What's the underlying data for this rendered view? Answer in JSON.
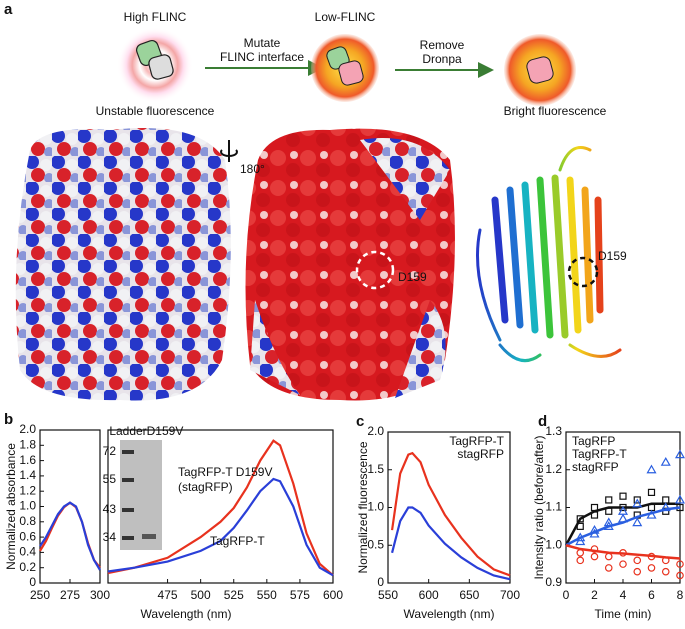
{
  "panel_a": {
    "label": "a",
    "high": "High FLINC",
    "step1": [
      "Mutate",
      "FLINC interface"
    ],
    "low": "Low-FLINC",
    "step2": [
      "Remove",
      "Dronpa"
    ],
    "unstable": "Unstable fluorescence",
    "bright": "Bright fluorescence",
    "rotation": "180°",
    "site_surface": "D159",
    "site_ribbon": "D159"
  },
  "chart_data": [
    {
      "type": "line",
      "panel_label": "b",
      "ylabel": "Normalized absorbance",
      "xlim": [
        250,
        300
      ],
      "xticks": [
        250,
        275,
        300
      ],
      "ylim": [
        0,
        2.0
      ],
      "yticks": [
        0,
        0.2,
        0.4,
        0.6,
        0.8,
        {
          "value": 1.0,
          "label": "1.0"
        },
        1.2,
        1.4,
        1.6,
        1.8,
        {
          "value": 2.0,
          "label": "2.0"
        }
      ],
      "series": [
        {
          "color": "#e8321e",
          "x": [
            250,
            255,
            260,
            265,
            270,
            275,
            280,
            285,
            290,
            295,
            300
          ],
          "values": [
            0.42,
            0.55,
            0.72,
            0.88,
            0.99,
            1.05,
            0.99,
            0.8,
            0.52,
            0.3,
            0.2
          ]
        },
        {
          "color": "#2a3fd8",
          "x": [
            250,
            255,
            260,
            265,
            270,
            275,
            280,
            285,
            290,
            295,
            300
          ],
          "values": [
            0.48,
            0.6,
            0.75,
            0.9,
            1.0,
            1.05,
            1.0,
            0.8,
            0.5,
            0.3,
            0.17
          ]
        }
      ]
    },
    {
      "type": "line",
      "xlabel": "Wavelength (nm)",
      "xlim": [
        430,
        600
      ],
      "xticks": [
        475,
        500,
        525,
        550,
        575,
        600
      ],
      "ylim": [
        0,
        2.0
      ],
      "series": [
        {
          "name": "TagRFP-T D159V",
          "color": "#e8321e",
          "x": [
            430,
            450,
            475,
            500,
            515,
            525,
            535,
            545,
            555,
            560,
            570,
            580,
            590,
            600
          ],
          "values": [
            0.13,
            0.2,
            0.33,
            0.6,
            0.8,
            0.98,
            1.25,
            1.6,
            1.86,
            1.8,
            1.3,
            0.65,
            0.25,
            0.1
          ]
        },
        {
          "name": "TagRFP-T",
          "color": "#2a3fd8",
          "x": [
            430,
            450,
            475,
            500,
            515,
            525,
            535,
            545,
            555,
            560,
            570,
            580,
            590,
            600
          ],
          "values": [
            0.15,
            0.2,
            0.28,
            0.42,
            0.55,
            0.72,
            0.95,
            1.2,
            1.36,
            1.33,
            1.0,
            0.5,
            0.2,
            0.1
          ]
        }
      ],
      "annotations": [
        "(stagRFP)"
      ],
      "inset": {
        "lane_labels": [
          "Ladder",
          "D159V"
        ],
        "marker_labels": [
          72,
          55,
          43,
          34
        ]
      }
    },
    {
      "type": "line",
      "panel_label": "c",
      "ylabel": "Normalized fluorescence",
      "xlabel": "Wavelength (nm)",
      "xlim": [
        550,
        700
      ],
      "xticks": [
        550,
        600,
        650,
        700
      ],
      "ylim": [
        0,
        2.0
      ],
      "yticks": [
        0,
        0.5,
        {
          "value": 1.0,
          "label": "1.0"
        },
        1.5,
        {
          "value": 2.0,
          "label": "2.0"
        }
      ],
      "legend": "upper right",
      "series": [
        {
          "name": "TagRFP-T",
          "color": "#2a3fd8",
          "x": [
            555,
            565,
            575,
            580,
            590,
            600,
            620,
            640,
            660,
            680,
            700
          ],
          "values": [
            0.4,
            0.82,
            1.0,
            1.0,
            0.93,
            0.76,
            0.52,
            0.34,
            0.2,
            0.1,
            0.05
          ]
        },
        {
          "name": "stagRFP",
          "color": "#e8321e",
          "x": [
            555,
            565,
            575,
            580,
            590,
            600,
            620,
            640,
            660,
            680,
            700
          ],
          "values": [
            0.7,
            1.45,
            1.7,
            1.72,
            1.6,
            1.3,
            0.9,
            0.6,
            0.35,
            0.18,
            0.1
          ]
        }
      ]
    },
    {
      "type": "scatter",
      "panel_label": "d",
      "ylabel": "Intensity ratio (before/after)",
      "xlabel": "Time (min)",
      "xlim": [
        0,
        8
      ],
      "xticks": [
        0,
        2,
        4,
        6,
        8
      ],
      "ylim": [
        0.9,
        1.3
      ],
      "yticks": [
        0.9,
        {
          "value": 1.0,
          "label": "1.0"
        },
        1.1,
        1.2,
        1.3
      ],
      "legend": "upper left",
      "series": [
        {
          "name": "TagRFP",
          "color": "#111111",
          "marker": "square",
          "x": [
            1,
            1,
            2,
            2,
            3,
            3,
            4,
            4,
            5,
            5,
            6,
            6,
            7,
            7,
            8
          ],
          "values": [
            1.07,
            1.05,
            1.1,
            1.08,
            1.12,
            1.09,
            1.13,
            1.1,
            1.12,
            1.08,
            1.14,
            1.1,
            1.12,
            1.09,
            1.1
          ],
          "fit_x": [
            0,
            1,
            2,
            3,
            4,
            5,
            6,
            7,
            8
          ],
          "fit_values": [
            1.0,
            1.07,
            1.09,
            1.1,
            1.1,
            1.1,
            1.11,
            1.11,
            1.11
          ]
        },
        {
          "name": "TagRFP-T",
          "color": "#2a5fe0",
          "marker": "triangle",
          "x": [
            1,
            1,
            2,
            2,
            3,
            3,
            4,
            4,
            5,
            5,
            6,
            6,
            7,
            7,
            8,
            8
          ],
          "values": [
            1.02,
            1.01,
            1.04,
            1.03,
            1.06,
            1.05,
            1.07,
            1.09,
            1.11,
            1.06,
            1.2,
            1.08,
            1.22,
            1.1,
            1.24,
            1.12
          ],
          "fit_x": [
            0,
            1,
            2,
            3,
            4,
            5,
            6,
            7,
            8
          ],
          "fit_values": [
            1.0,
            1.02,
            1.035,
            1.05,
            1.06,
            1.075,
            1.085,
            1.095,
            1.1
          ]
        },
        {
          "name": "stagRFP",
          "color": "#e8321e",
          "marker": "circle",
          "x": [
            1,
            1,
            2,
            2,
            3,
            3,
            4,
            4,
            5,
            5,
            6,
            6,
            7,
            7,
            8,
            8
          ],
          "values": [
            0.98,
            0.96,
            0.99,
            0.97,
            0.97,
            0.94,
            0.98,
            0.95,
            0.96,
            0.93,
            0.97,
            0.94,
            0.96,
            0.93,
            0.95,
            0.92
          ],
          "fit_x": [
            0,
            1,
            2,
            3,
            4,
            5,
            6,
            7,
            8
          ],
          "fit_values": [
            1.0,
            0.99,
            0.985,
            0.98,
            0.978,
            0.975,
            0.972,
            0.968,
            0.965
          ]
        }
      ]
    }
  ]
}
